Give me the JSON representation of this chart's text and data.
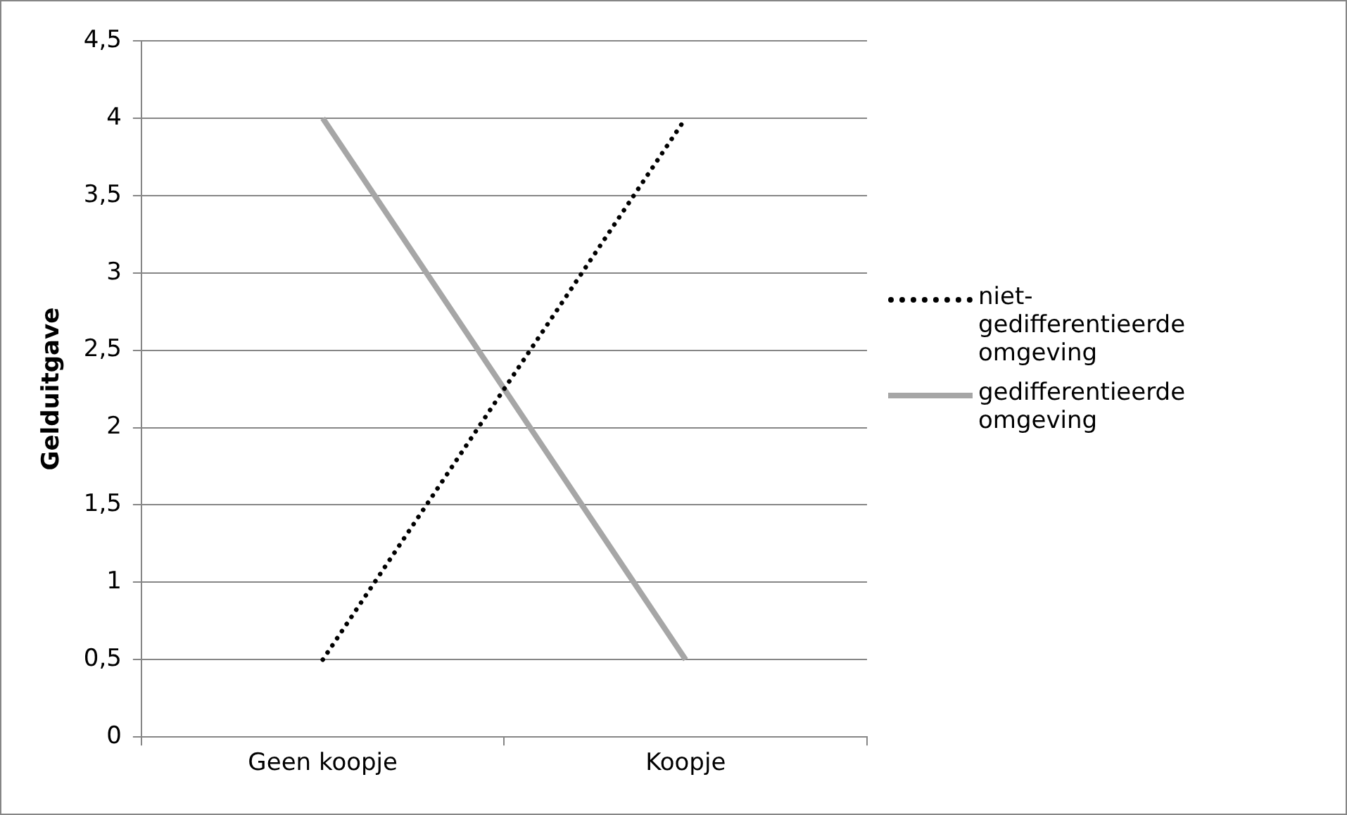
{
  "chart_data": {
    "type": "line",
    "categories": [
      "Geen koopje",
      "Koopje"
    ],
    "ylabel": "Gelduitgave",
    "ylim": [
      0,
      4.5
    ],
    "yticks": [
      0,
      {
        "value": 0.5,
        "label": "0,5"
      },
      1,
      {
        "value": 1.5,
        "label": "1,5"
      },
      2,
      {
        "value": 2.5,
        "label": "2,5"
      },
      3,
      {
        "value": 3.5,
        "label": "3,5"
      },
      4,
      {
        "value": 4.5,
        "label": "4,5"
      }
    ],
    "series": [
      {
        "name": "niet-gedifferentieerde omgeving",
        "color": "#000000",
        "line_style": "dotted",
        "values": [
          0.5,
          4
        ]
      },
      {
        "name": "gedifferentieerde omgeving",
        "color": "#a6a6a6",
        "line_style": "solid",
        "values": [
          4,
          0.5
        ]
      }
    ],
    "grid": "y",
    "legend": "right",
    "marker": "none"
  }
}
